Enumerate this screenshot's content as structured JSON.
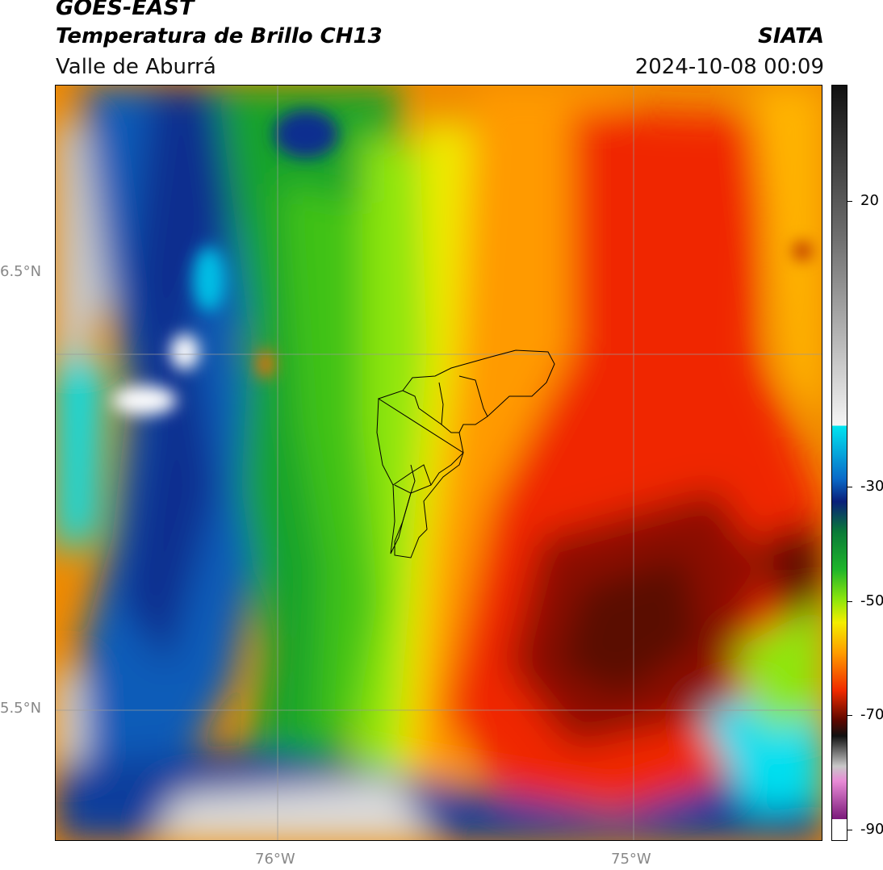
{
  "header": {
    "title": "GOES-EAST",
    "subtitle": "Temperatura de Brillo CH13",
    "org": "SIATA",
    "region": "Valle de Aburrá",
    "timestamp": "2024-10-08 00:09"
  },
  "axes": {
    "lat_labels": [
      "6.5°N",
      "5.5°N"
    ],
    "lon_labels": [
      "76°W",
      "75°W"
    ]
  },
  "colorbar": {
    "ticks": [
      "20",
      "-30",
      "-50",
      "-70",
      "-90"
    ],
    "colors": {
      "warm_gray": "#bdbdbd",
      "cyan": "#00e5f0",
      "blue": "#0a4fa8",
      "navy": "#0a1f7a",
      "green": "#1fb52a",
      "lime": "#7ee60e",
      "yellow": "#f3ee00",
      "orange": "#ff9d00",
      "red": "#f02a00",
      "dark_red": "#7a0c00",
      "black": "#111111",
      "magenta": "#c23aa6"
    }
  }
}
